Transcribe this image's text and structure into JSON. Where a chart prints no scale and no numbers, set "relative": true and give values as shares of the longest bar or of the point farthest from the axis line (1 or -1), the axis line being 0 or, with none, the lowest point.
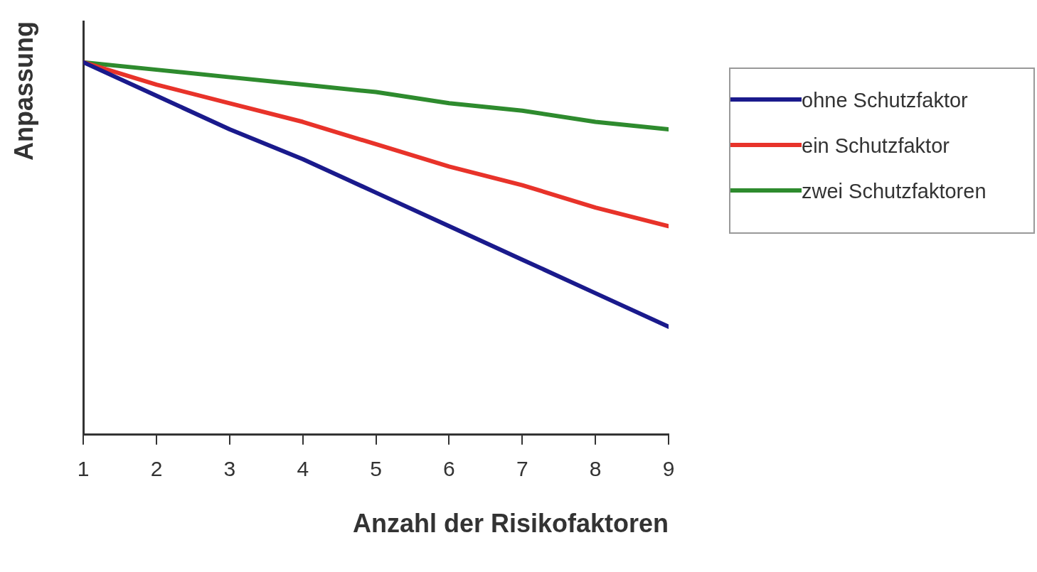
{
  "chart_data": {
    "type": "line",
    "relative": true,
    "xlabel": "Anzahl der Risikofaktoren",
    "ylabel": "Anpassung",
    "x": [
      1,
      2,
      3,
      4,
      5,
      6,
      7,
      8,
      9
    ],
    "xlim": [
      1,
      9
    ],
    "xticks": [
      1,
      2,
      3,
      4,
      5,
      6,
      7,
      8,
      9
    ],
    "series": [
      {
        "name": "ohne Schutzfaktor",
        "color": "#1a1a8c",
        "values": [
          1.0,
          0.91,
          0.82,
          0.74,
          0.65,
          0.56,
          0.47,
          0.38,
          0.29
        ]
      },
      {
        "name": "ein Schutzfaktor",
        "color": "#e8332a",
        "values": [
          1.0,
          0.94,
          0.89,
          0.84,
          0.78,
          0.72,
          0.67,
          0.61,
          0.56
        ]
      },
      {
        "name": "zwei Schutzfaktoren",
        "color": "#2e8b2e",
        "values": [
          1.0,
          0.98,
          0.96,
          0.94,
          0.92,
          0.89,
          0.87,
          0.84,
          0.82
        ]
      }
    ],
    "legend": "right",
    "grid": false,
    "marker": "none",
    "line_style": "solid"
  }
}
